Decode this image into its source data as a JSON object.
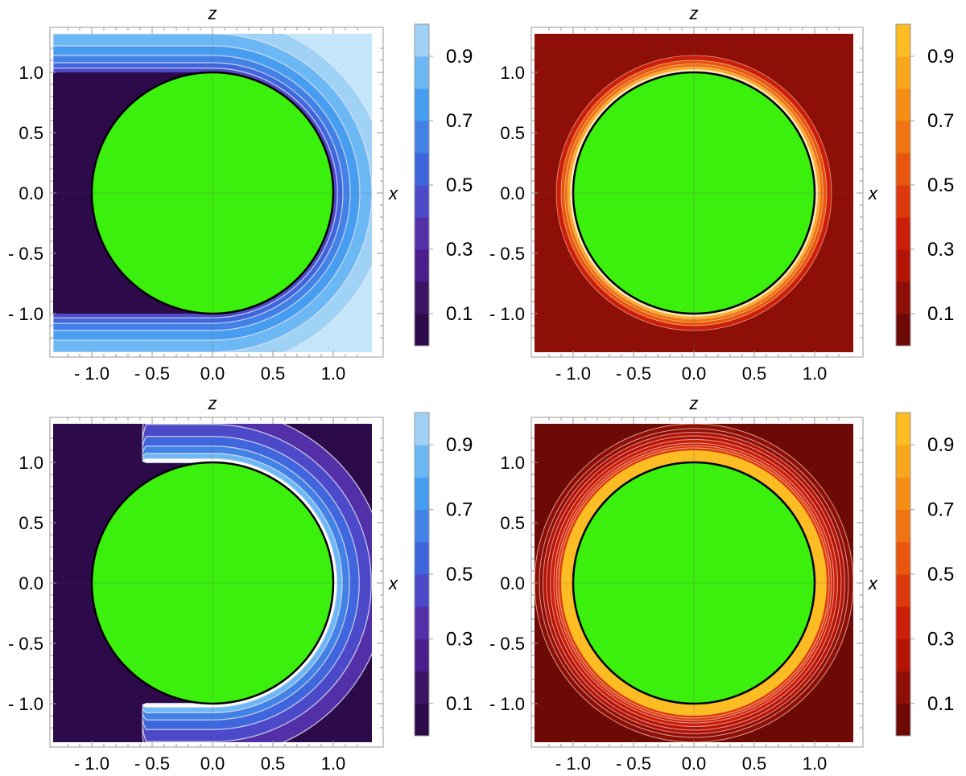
{
  "chart_data": [
    {
      "type": "heatmap",
      "title": "",
      "xlabel": "x",
      "ylabel": "z",
      "xlim": [
        -1.32,
        1.32
      ],
      "ylim": [
        -1.32,
        1.32
      ],
      "x_ticks": [
        -1.0,
        -0.5,
        0.0,
        0.5,
        1.0
      ],
      "y_ticks": [
        -1.0,
        -0.5,
        0.0,
        0.5,
        1.0
      ],
      "x_tick_labels": [
        "- 1.0",
        "- 0.5",
        "0.0",
        "0.5",
        "1.0"
      ],
      "y_tick_labels": [
        "- 1.0",
        "- 0.5",
        "0.0",
        "0.5",
        "1.0"
      ],
      "colorscale": "blue",
      "colorbar_ticks": [
        0.1,
        0.3,
        0.5,
        0.7,
        0.9
      ],
      "colorbar_tick_labels": [
        "0.1",
        "0.3",
        "0.5",
        "0.7",
        "0.9"
      ],
      "colorbar_range": [
        0,
        1
      ],
      "sphere_radius": 1.0,
      "sphere_color": "#3cf00e",
      "pattern": "wake",
      "description_values": {
        "upstream_value": 1.0,
        "wake_value": 0.0
      }
    },
    {
      "type": "heatmap",
      "title": "",
      "xlabel": "x",
      "ylabel": "z",
      "xlim": [
        -1.32,
        1.32
      ],
      "ylim": [
        -1.32,
        1.32
      ],
      "x_ticks": [
        -1.0,
        -0.5,
        0.0,
        0.5,
        1.0
      ],
      "y_ticks": [
        -1.0,
        -0.5,
        0.0,
        0.5,
        1.0
      ],
      "x_tick_labels": [
        "- 1.0",
        "- 0.5",
        "0.0",
        "0.5",
        "1.0"
      ],
      "y_tick_labels": [
        "- 1.0",
        "- 0.5",
        "0.0",
        "0.5",
        "1.0"
      ],
      "colorscale": "orange",
      "colorbar_ticks": [
        0.1,
        0.3,
        0.5,
        0.7,
        0.9
      ],
      "colorbar_tick_labels": [
        "0.1",
        "0.3",
        "0.5",
        "0.7",
        "0.9"
      ],
      "colorbar_range": [
        0,
        1
      ],
      "sphere_radius": 1.0,
      "sphere_color": "#3cf00e",
      "pattern": "ring",
      "description_values": {
        "background_value": 0.1
      }
    },
    {
      "type": "heatmap",
      "title": "",
      "xlabel": "x",
      "ylabel": "z",
      "xlim": [
        -1.32,
        1.32
      ],
      "ylim": [
        -1.32,
        1.32
      ],
      "x_ticks": [
        -1.0,
        -0.5,
        0.0,
        0.5,
        1.0
      ],
      "y_ticks": [
        -1.0,
        -0.5,
        0.0,
        0.5,
        1.0
      ],
      "x_tick_labels": [
        "- 1.0",
        "- 0.5",
        "0.0",
        "0.5",
        "1.0"
      ],
      "y_tick_labels": [
        "- 1.0",
        "- 0.5",
        "0.0",
        "0.5",
        "1.0"
      ],
      "colorscale": "blue",
      "colorbar_ticks": [
        0.1,
        0.3,
        0.5,
        0.7,
        0.9
      ],
      "colorbar_tick_labels": [
        "0.1",
        "0.3",
        "0.5",
        "0.7",
        "0.9"
      ],
      "colorbar_range": [
        0,
        1
      ],
      "sphere_radius": 1.0,
      "sphere_color": "#3cf00e",
      "pattern": "crescent",
      "description_values": {
        "background_value": 0.0
      }
    },
    {
      "type": "heatmap",
      "title": "",
      "xlabel": "x",
      "ylabel": "z",
      "xlim": [
        -1.32,
        1.32
      ],
      "ylim": [
        -1.32,
        1.32
      ],
      "x_ticks": [
        -1.0,
        -0.5,
        0.0,
        0.5,
        1.0
      ],
      "y_ticks": [
        -1.0,
        -0.5,
        0.0,
        0.5,
        1.0
      ],
      "x_tick_labels": [
        "- 1.0",
        "- 0.5",
        "0.0",
        "0.5",
        "1.0"
      ],
      "y_tick_labels": [
        "- 1.0",
        "- 0.5",
        "0.0",
        "0.5",
        "1.0"
      ],
      "colorscale": "orange",
      "colorbar_ticks": [
        0.1,
        0.3,
        0.5,
        0.7,
        0.9
      ],
      "colorbar_tick_labels": [
        "0.1",
        "0.3",
        "0.5",
        "0.7",
        "0.9"
      ],
      "colorbar_range": [
        0,
        1
      ],
      "sphere_radius": 1.0,
      "sphere_color": "#3cf00e",
      "pattern": "glow",
      "description_values": {
        "background_value": 0.0
      }
    }
  ],
  "palettes": {
    "blue": [
      "#2d0b4b",
      "#3a1463",
      "#4a1e8c",
      "#5430a8",
      "#4c4ac8",
      "#3f66dc",
      "#4282e6",
      "#479ef0",
      "#6cb8f4",
      "#a0d2f6",
      "#c4e6fa"
    ],
    "orange": [
      "#6e0a06",
      "#8e0f07",
      "#b41408",
      "#cc1f0a",
      "#dc3a0c",
      "#e8560e",
      "#f07210",
      "#f58c14",
      "#f8a61c",
      "#fbbc24",
      "#fbc82a"
    ]
  }
}
